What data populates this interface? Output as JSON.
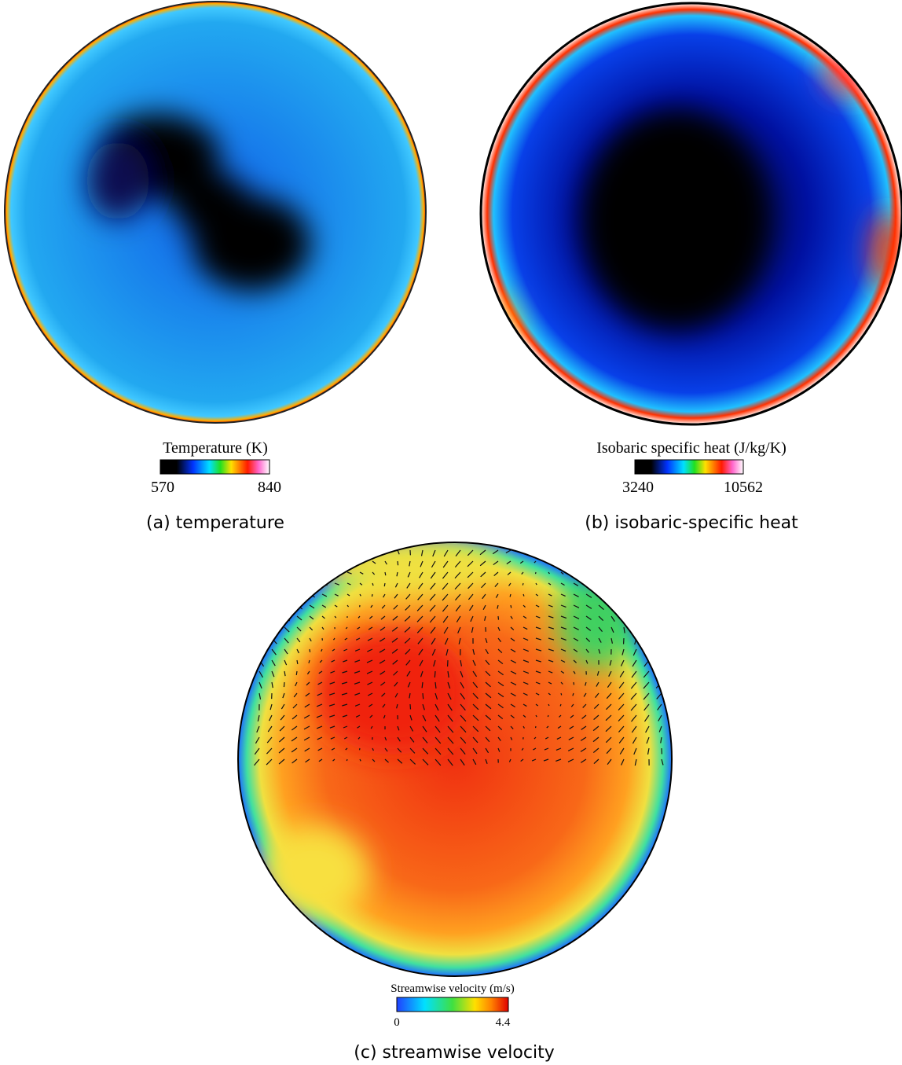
{
  "panels": [
    {
      "colorbar": {
        "title": "Temperature (K)",
        "min": 570,
        "max": 840
      },
      "caption": "(a) temperature"
    },
    {
      "colorbar": {
        "title": "Isobaric specific heat (J/kg/K)",
        "min": 3240,
        "max": 10562
      },
      "caption": "(b) isobaric-specific heat"
    },
    {
      "colorbar": {
        "title": "Streamwise velocity (m/s)",
        "min": 0,
        "max": 4.4
      },
      "caption": "(c) streamwise velocity"
    }
  ]
}
